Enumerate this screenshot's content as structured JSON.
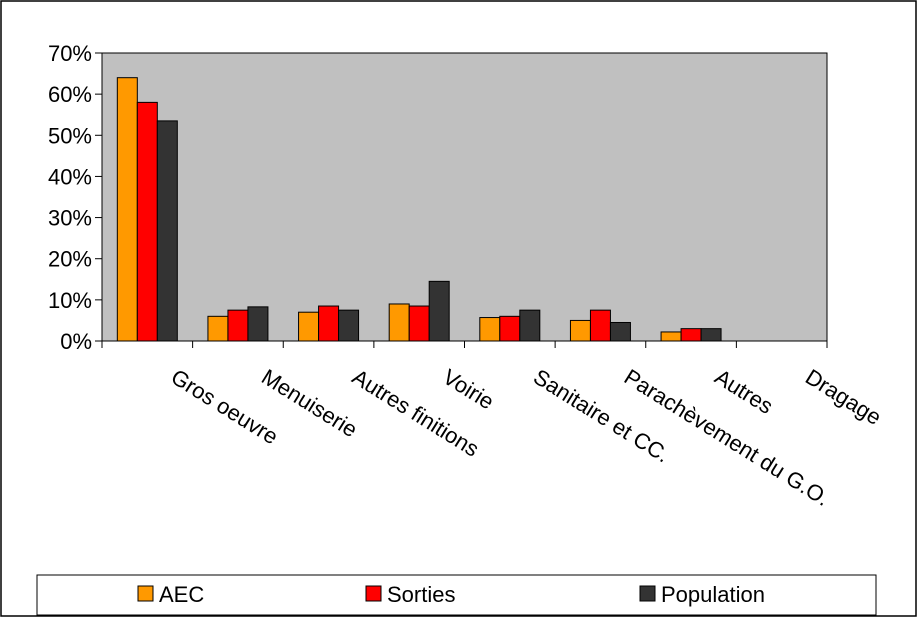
{
  "chart_data": {
    "type": "bar",
    "categories": [
      "Gros oeuvre",
      "Menuiserie",
      "Autres finitions",
      "Voirie",
      "Sanitaire et CC.",
      "Parachèvement du G.O.",
      "Autres",
      "Dragage"
    ],
    "series": [
      {
        "name": "AEC",
        "values": [
          64,
          6,
          7,
          9,
          5.7,
          5,
          2.2,
          0
        ]
      },
      {
        "name": "Sorties",
        "values": [
          58,
          7.5,
          8.5,
          8.5,
          6,
          7.5,
          3,
          0
        ]
      },
      {
        "name": "Population",
        "values": [
          53.5,
          8.3,
          7.5,
          14.5,
          7.5,
          4.5,
          3,
          0
        ]
      }
    ],
    "ylim": [
      0,
      70
    ],
    "yticks": [
      "0%",
      "10%",
      "20%",
      "30%",
      "40%",
      "50%",
      "60%",
      "70%"
    ],
    "colors": {
      "AEC": "#ff9900",
      "Sorties": "#ff0000",
      "Population": "#333333",
      "plot_background": "#c0c0c0"
    },
    "legend_position": "bottom",
    "grid": false
  }
}
